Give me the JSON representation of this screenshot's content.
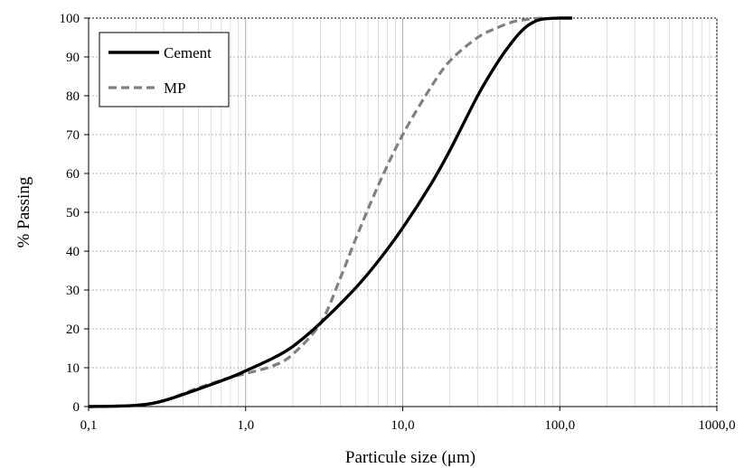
{
  "chart_data": {
    "type": "line",
    "title": "",
    "xlabel": "Particule size (μm)",
    "ylabel": "% Passing",
    "xscale": "log",
    "xlim": [
      0.1,
      1000
    ],
    "ylim": [
      0,
      100
    ],
    "x_ticks": [
      {
        "value": 0.1,
        "label": "0,1"
      },
      {
        "value": 1,
        "label": "1,0"
      },
      {
        "value": 10,
        "label": "10,0"
      },
      {
        "value": 100,
        "label": "100,0"
      },
      {
        "value": 1000,
        "label": "1000,0"
      }
    ],
    "y_ticks": [
      0,
      10,
      20,
      30,
      40,
      50,
      60,
      70,
      80,
      90,
      100
    ],
    "grid": true,
    "legend_position": "top-left",
    "series": [
      {
        "name": "Cement",
        "color": "#000000",
        "dash": "solid",
        "x": [
          0.1,
          0.2,
          0.3,
          0.5,
          0.8,
          1.0,
          1.5,
          2.0,
          3.0,
          5.0,
          7.0,
          10.0,
          15.0,
          20.0,
          30.0,
          40.0,
          50.0,
          60.0,
          70.0,
          80.0,
          100.0,
          120.0
        ],
        "y": [
          0,
          0.3,
          1.5,
          4.5,
          7.5,
          9.2,
          12.5,
          15.5,
          21.5,
          30.5,
          37.5,
          46,
          57,
          66,
          80,
          88.5,
          94,
          97.5,
          99.2,
          99.8,
          100,
          100
        ]
      },
      {
        "name": "MP",
        "color": "#808080",
        "dash": "dashed",
        "x": [
          0.1,
          0.2,
          0.3,
          0.5,
          0.8,
          1.0,
          1.5,
          2.0,
          3.0,
          4.0,
          5.0,
          7.0,
          10.0,
          15.0,
          20.0,
          30.0,
          40.0,
          50.0,
          60.0,
          70.0,
          80.0
        ],
        "y": [
          0,
          0.3,
          1.5,
          4.8,
          7.5,
          8.5,
          10.5,
          13.5,
          21.5,
          33,
          43,
          57,
          70,
          82,
          89,
          95,
          97.5,
          99,
          99.6,
          99.9,
          100
        ]
      }
    ]
  }
}
